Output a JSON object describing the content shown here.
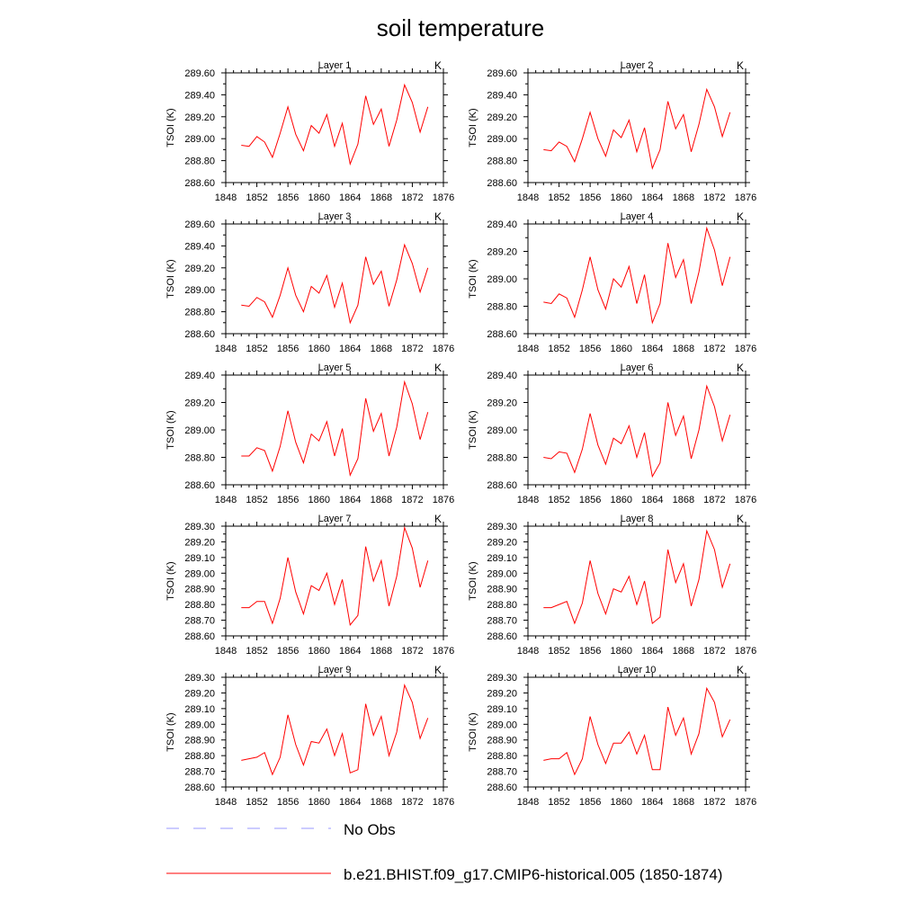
{
  "title": "soil temperature",
  "legend": {
    "items": [
      {
        "label": "No Obs",
        "color": "#9999ff",
        "style": "dashed"
      },
      {
        "label": "b.e21.BHIST.f09_g17.CMIP6-historical.005 (1850-1874)",
        "color": "#ff0000",
        "style": "solid"
      }
    ]
  },
  "chart_data": [
    {
      "type": "line",
      "title": "Layer 1",
      "units": "K",
      "ylabel": "TSOI  (K)",
      "xlim": [
        1848,
        1876
      ],
      "xticks": [
        1848,
        1852,
        1856,
        1860,
        1864,
        1868,
        1872,
        1876
      ],
      "ylim": [
        288.6,
        289.6
      ],
      "yticks": [
        288.6,
        288.8,
        289.0,
        289.2,
        289.4,
        289.6
      ],
      "ytick_labels": [
        "288.60",
        "288.80",
        "289.00",
        "289.20",
        "289.40",
        "289.60"
      ],
      "x": [
        1850,
        1851,
        1852,
        1853,
        1854,
        1855,
        1856,
        1857,
        1858,
        1859,
        1860,
        1861,
        1862,
        1863,
        1864,
        1865,
        1866,
        1867,
        1868,
        1869,
        1870,
        1871,
        1872,
        1873,
        1874
      ],
      "series": [
        {
          "values": [
            288.94,
            288.93,
            289.02,
            288.97,
            288.83,
            289.05,
            289.29,
            289.04,
            288.89,
            289.12,
            289.05,
            289.22,
            288.93,
            289.14,
            288.77,
            288.95,
            289.39,
            289.13,
            289.27,
            288.93,
            289.17,
            289.49,
            289.33,
            289.06,
            289.29
          ]
        }
      ]
    },
    {
      "type": "line",
      "title": "Layer 2",
      "units": "K",
      "ylabel": "TSOI  (K)",
      "xlim": [
        1848,
        1876
      ],
      "xticks": [
        1848,
        1852,
        1856,
        1860,
        1864,
        1868,
        1872,
        1876
      ],
      "ylim": [
        288.6,
        289.6
      ],
      "yticks": [
        288.6,
        288.8,
        289.0,
        289.2,
        289.4,
        289.6
      ],
      "ytick_labels": [
        "288.60",
        "288.80",
        "289.00",
        "289.20",
        "289.40",
        "289.60"
      ],
      "x": [
        1850,
        1851,
        1852,
        1853,
        1854,
        1855,
        1856,
        1857,
        1858,
        1859,
        1860,
        1861,
        1862,
        1863,
        1864,
        1865,
        1866,
        1867,
        1868,
        1869,
        1870,
        1871,
        1872,
        1873,
        1874
      ],
      "series": [
        {
          "values": [
            288.9,
            288.89,
            288.97,
            288.93,
            288.79,
            289.0,
            289.24,
            289.0,
            288.84,
            289.08,
            289.01,
            289.17,
            288.88,
            289.1,
            288.73,
            288.9,
            289.34,
            289.09,
            289.22,
            288.88,
            289.13,
            289.45,
            289.29,
            289.02,
            289.24
          ]
        }
      ]
    },
    {
      "type": "line",
      "title": "Layer 3",
      "units": "K",
      "ylabel": "TSOI  (K)",
      "xlim": [
        1848,
        1876
      ],
      "xticks": [
        1848,
        1852,
        1856,
        1860,
        1864,
        1868,
        1872,
        1876
      ],
      "ylim": [
        288.6,
        289.6
      ],
      "yticks": [
        288.6,
        288.8,
        289.0,
        289.2,
        289.4,
        289.6
      ],
      "ytick_labels": [
        "288.60",
        "288.80",
        "289.00",
        "289.20",
        "289.40",
        "289.60"
      ],
      "x": [
        1850,
        1851,
        1852,
        1853,
        1854,
        1855,
        1856,
        1857,
        1858,
        1859,
        1860,
        1861,
        1862,
        1863,
        1864,
        1865,
        1866,
        1867,
        1868,
        1869,
        1870,
        1871,
        1872,
        1873,
        1874
      ],
      "series": [
        {
          "values": [
            288.86,
            288.85,
            288.93,
            288.89,
            288.75,
            288.95,
            289.2,
            288.95,
            288.8,
            289.03,
            288.97,
            289.13,
            288.84,
            289.06,
            288.7,
            288.86,
            289.3,
            289.05,
            289.17,
            288.85,
            289.09,
            289.41,
            289.24,
            288.98,
            289.2
          ]
        }
      ]
    },
    {
      "type": "line",
      "title": "Layer 4",
      "units": "K",
      "ylabel": "TSOI  (K)",
      "xlim": [
        1848,
        1876
      ],
      "xticks": [
        1848,
        1852,
        1856,
        1860,
        1864,
        1868,
        1872,
        1876
      ],
      "ylim": [
        288.6,
        289.4
      ],
      "yticks": [
        288.6,
        288.8,
        289.0,
        289.2,
        289.4
      ],
      "ytick_labels": [
        "288.60",
        "288.80",
        "289.00",
        "289.20",
        "289.40"
      ],
      "x": [
        1850,
        1851,
        1852,
        1853,
        1854,
        1855,
        1856,
        1857,
        1858,
        1859,
        1860,
        1861,
        1862,
        1863,
        1864,
        1865,
        1866,
        1867,
        1868,
        1869,
        1870,
        1871,
        1872,
        1873,
        1874
      ],
      "series": [
        {
          "values": [
            288.83,
            288.82,
            288.89,
            288.86,
            288.72,
            288.92,
            289.16,
            288.92,
            288.78,
            289.0,
            288.94,
            289.09,
            288.82,
            289.03,
            288.68,
            288.82,
            289.26,
            289.01,
            289.14,
            288.82,
            289.05,
            289.37,
            289.21,
            288.95,
            289.16
          ]
        }
      ]
    },
    {
      "type": "line",
      "title": "Layer 5",
      "units": "K",
      "ylabel": "TSOI  (K)",
      "xlim": [
        1848,
        1876
      ],
      "xticks": [
        1848,
        1852,
        1856,
        1860,
        1864,
        1868,
        1872,
        1876
      ],
      "ylim": [
        288.6,
        289.4
      ],
      "yticks": [
        288.6,
        288.8,
        289.0,
        289.2,
        289.4
      ],
      "ytick_labels": [
        "288.60",
        "288.80",
        "289.00",
        "289.20",
        "289.40"
      ],
      "x": [
        1850,
        1851,
        1852,
        1853,
        1854,
        1855,
        1856,
        1857,
        1858,
        1859,
        1860,
        1861,
        1862,
        1863,
        1864,
        1865,
        1866,
        1867,
        1868,
        1869,
        1870,
        1871,
        1872,
        1873,
        1874
      ],
      "series": [
        {
          "values": [
            288.81,
            288.81,
            288.87,
            288.85,
            288.7,
            288.88,
            289.14,
            288.91,
            288.76,
            288.97,
            288.92,
            289.06,
            288.81,
            289.01,
            288.67,
            288.79,
            289.23,
            288.99,
            289.12,
            288.81,
            289.02,
            289.35,
            289.19,
            288.93,
            289.13
          ]
        }
      ]
    },
    {
      "type": "line",
      "title": "Layer 6",
      "units": "K",
      "ylabel": "TSOI  (K)",
      "xlim": [
        1848,
        1876
      ],
      "xticks": [
        1848,
        1852,
        1856,
        1860,
        1864,
        1868,
        1872,
        1876
      ],
      "ylim": [
        288.6,
        289.4
      ],
      "yticks": [
        288.6,
        288.8,
        289.0,
        289.2,
        289.4
      ],
      "ytick_labels": [
        "288.60",
        "288.80",
        "289.00",
        "289.20",
        "289.40"
      ],
      "x": [
        1850,
        1851,
        1852,
        1853,
        1854,
        1855,
        1856,
        1857,
        1858,
        1859,
        1860,
        1861,
        1862,
        1863,
        1864,
        1865,
        1866,
        1867,
        1868,
        1869,
        1870,
        1871,
        1872,
        1873,
        1874
      ],
      "series": [
        {
          "values": [
            288.8,
            288.79,
            288.84,
            288.83,
            288.69,
            288.86,
            289.12,
            288.89,
            288.75,
            288.94,
            288.9,
            289.03,
            288.8,
            288.98,
            288.66,
            288.76,
            289.2,
            288.96,
            289.1,
            288.79,
            289.0,
            289.32,
            289.17,
            288.92,
            289.11
          ]
        }
      ]
    },
    {
      "type": "line",
      "title": "Layer 7",
      "units": "K",
      "ylabel": "TSOI  (K)",
      "xlim": [
        1848,
        1876
      ],
      "xticks": [
        1848,
        1852,
        1856,
        1860,
        1864,
        1868,
        1872,
        1876
      ],
      "ylim": [
        288.6,
        289.3
      ],
      "yticks": [
        288.6,
        288.7,
        288.8,
        288.9,
        289.0,
        289.1,
        289.2,
        289.3
      ],
      "ytick_labels": [
        "288.60",
        "288.70",
        "288.80",
        "288.90",
        "289.00",
        "289.10",
        "289.20",
        "289.30"
      ],
      "x": [
        1850,
        1851,
        1852,
        1853,
        1854,
        1855,
        1856,
        1857,
        1858,
        1859,
        1860,
        1861,
        1862,
        1863,
        1864,
        1865,
        1866,
        1867,
        1868,
        1869,
        1870,
        1871,
        1872,
        1873,
        1874
      ],
      "series": [
        {
          "values": [
            288.78,
            288.78,
            288.82,
            288.82,
            288.68,
            288.84,
            289.1,
            288.88,
            288.74,
            288.92,
            288.89,
            289.0,
            288.8,
            288.96,
            288.67,
            288.73,
            289.17,
            288.95,
            289.08,
            288.79,
            288.98,
            289.29,
            289.16,
            288.91,
            289.08
          ]
        }
      ]
    },
    {
      "type": "line",
      "title": "Layer 8",
      "units": "K",
      "ylabel": "TSOI  (K)",
      "xlim": [
        1848,
        1876
      ],
      "xticks": [
        1848,
        1852,
        1856,
        1860,
        1864,
        1868,
        1872,
        1876
      ],
      "ylim": [
        288.6,
        289.3
      ],
      "yticks": [
        288.6,
        288.7,
        288.8,
        288.9,
        289.0,
        289.1,
        289.2,
        289.3
      ],
      "ytick_labels": [
        "288.60",
        "288.70",
        "288.80",
        "288.90",
        "289.00",
        "289.10",
        "289.20",
        "289.30"
      ],
      "x": [
        1850,
        1851,
        1852,
        1853,
        1854,
        1855,
        1856,
        1857,
        1858,
        1859,
        1860,
        1861,
        1862,
        1863,
        1864,
        1865,
        1866,
        1867,
        1868,
        1869,
        1870,
        1871,
        1872,
        1873,
        1874
      ],
      "series": [
        {
          "values": [
            288.78,
            288.78,
            288.8,
            288.82,
            288.68,
            288.81,
            289.08,
            288.87,
            288.74,
            288.9,
            288.88,
            288.98,
            288.8,
            288.95,
            288.68,
            288.72,
            289.15,
            288.94,
            289.06,
            288.79,
            288.96,
            289.27,
            289.15,
            288.91,
            289.06
          ]
        }
      ]
    },
    {
      "type": "line",
      "title": "Layer 9",
      "units": "K",
      "ylabel": "TSOI  (K)",
      "xlim": [
        1848,
        1876
      ],
      "xticks": [
        1848,
        1852,
        1856,
        1860,
        1864,
        1868,
        1872,
        1876
      ],
      "ylim": [
        288.6,
        289.3
      ],
      "yticks": [
        288.6,
        288.7,
        288.8,
        288.9,
        289.0,
        289.1,
        289.2,
        289.3
      ],
      "ytick_labels": [
        "288.60",
        "288.70",
        "288.80",
        "288.90",
        "289.00",
        "289.10",
        "289.20",
        "289.30"
      ],
      "x": [
        1850,
        1851,
        1852,
        1853,
        1854,
        1855,
        1856,
        1857,
        1858,
        1859,
        1860,
        1861,
        1862,
        1863,
        1864,
        1865,
        1866,
        1867,
        1868,
        1869,
        1870,
        1871,
        1872,
        1873,
        1874
      ],
      "series": [
        {
          "values": [
            288.77,
            288.78,
            288.79,
            288.82,
            288.68,
            288.79,
            289.06,
            288.87,
            288.74,
            288.89,
            288.88,
            288.97,
            288.8,
            288.94,
            288.69,
            288.71,
            289.13,
            288.93,
            289.05,
            288.8,
            288.95,
            289.25,
            289.14,
            288.91,
            289.04
          ]
        }
      ]
    },
    {
      "type": "line",
      "title": "Layer 10",
      "units": "K",
      "ylabel": "TSOI  (K)",
      "xlim": [
        1848,
        1876
      ],
      "xticks": [
        1848,
        1852,
        1856,
        1860,
        1864,
        1868,
        1872,
        1876
      ],
      "ylim": [
        288.6,
        289.3
      ],
      "yticks": [
        288.6,
        288.7,
        288.8,
        288.9,
        289.0,
        289.1,
        289.2,
        289.3
      ],
      "ytick_labels": [
        "288.60",
        "288.70",
        "288.80",
        "288.90",
        "289.00",
        "289.10",
        "289.20",
        "289.30"
      ],
      "x": [
        1850,
        1851,
        1852,
        1853,
        1854,
        1855,
        1856,
        1857,
        1858,
        1859,
        1860,
        1861,
        1862,
        1863,
        1864,
        1865,
        1866,
        1867,
        1868,
        1869,
        1870,
        1871,
        1872,
        1873,
        1874
      ],
      "series": [
        {
          "values": [
            288.77,
            288.78,
            288.78,
            288.82,
            288.68,
            288.78,
            289.05,
            288.87,
            288.75,
            288.88,
            288.88,
            288.95,
            288.81,
            288.93,
            288.71,
            288.71,
            289.11,
            288.93,
            289.04,
            288.81,
            288.94,
            289.23,
            289.14,
            288.92,
            289.03
          ]
        }
      ]
    }
  ]
}
